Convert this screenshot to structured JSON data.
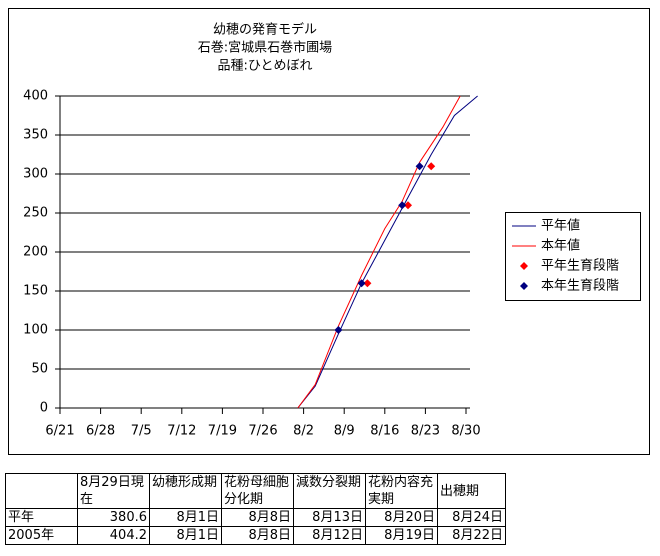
{
  "chart_data": {
    "type": "line",
    "title": [
      "幼穂の発育モデル",
      "石巻:宮城県石巻市圃場",
      "品種:ひとめぼれ"
    ],
    "xlim": [
      "6/21",
      "8/30"
    ],
    "xticks": [
      "6/21",
      "6/28",
      "7/5",
      "7/12",
      "7/19",
      "7/26",
      "8/2",
      "8/9",
      "8/16",
      "8/23",
      "8/30"
    ],
    "ylim": [
      0,
      400
    ],
    "yticks": [
      0,
      50,
      100,
      150,
      200,
      250,
      300,
      350,
      400
    ],
    "grid": true,
    "legend": "right",
    "series": [
      {
        "name": "平年値",
        "color": "#000080",
        "mode": "line",
        "x": [
          "8/1",
          "8/4",
          "8/8",
          "8/12",
          "8/16",
          "8/20",
          "8/24",
          "8/28",
          "9/1"
        ],
        "values": [
          0,
          28,
          95,
          160,
          215,
          270,
          325,
          375,
          400
        ]
      },
      {
        "name": "本年値",
        "color": "#ff0000",
        "mode": "line",
        "x": [
          "8/1",
          "8/4",
          "8/8",
          "8/12",
          "8/16",
          "8/19",
          "8/22",
          "8/26",
          "8/29"
        ],
        "values": [
          0,
          30,
          105,
          170,
          230,
          265,
          315,
          360,
          400
        ]
      },
      {
        "name": "平年生育段階",
        "color": "#ff0000",
        "mode": "markers",
        "x": [
          "8/13",
          "8/20",
          "8/24"
        ],
        "values": [
          160,
          260,
          310
        ]
      },
      {
        "name": "本年生育段階",
        "color": "#000080",
        "mode": "markers",
        "x": [
          "8/8",
          "8/12",
          "8/19",
          "8/22"
        ],
        "values": [
          100,
          160,
          260,
          310
        ]
      }
    ]
  },
  "table": {
    "header": [
      "8月29日現在",
      "幼穂形成期",
      "花粉母細胞分化期",
      "減数分裂期",
      "花粉内容充実期",
      "出穂期"
    ],
    "rows": [
      [
        "平年",
        "380.6",
        "8月1日",
        "8月8日",
        "8月13日",
        "8月20日",
        "8月24日"
      ],
      [
        "2005年",
        "404.2",
        "8月1日",
        "8月8日",
        "8月12日",
        "8月19日",
        "8月22日"
      ]
    ]
  }
}
